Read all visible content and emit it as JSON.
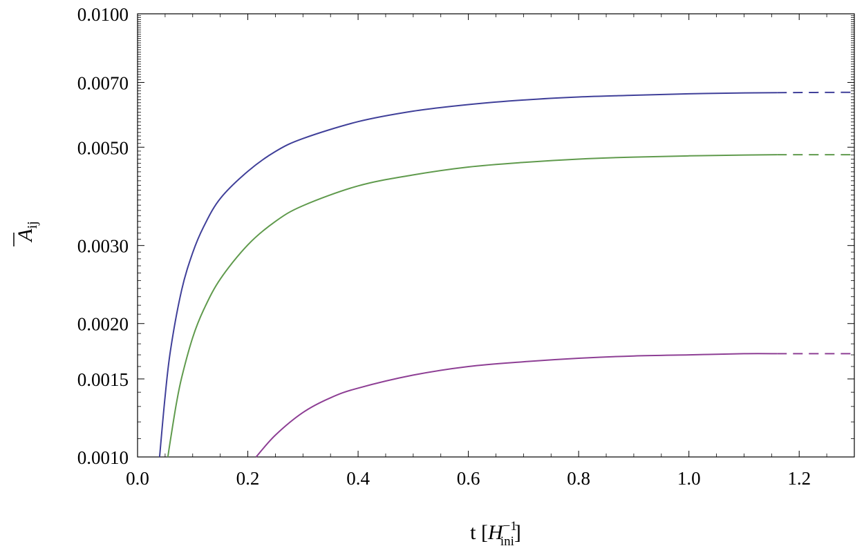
{
  "chart_data": {
    "type": "line",
    "title": "",
    "xlabel": "t [H_ini^-1]",
    "xlabel_parts": {
      "pre": "t [",
      "var": "H",
      "sub": "ini",
      "sup": "−1",
      "post": "]"
    },
    "ylabel": "Ā_ij",
    "ylabel_parts": {
      "var": "A",
      "sub": "ij"
    },
    "x_scale": "linear",
    "y_scale": "log",
    "xlim": [
      0.0,
      1.3
    ],
    "ylim": [
      0.001,
      0.01
    ],
    "x_ticks": [
      {
        "value": 0.0,
        "label": "0.0"
      },
      {
        "value": 0.2,
        "label": "0.2"
      },
      {
        "value": 0.4,
        "label": "0.4"
      },
      {
        "value": 0.6,
        "label": "0.6"
      },
      {
        "value": 0.8,
        "label": "0.8"
      },
      {
        "value": 1.0,
        "label": "1.0"
      },
      {
        "value": 1.2,
        "label": "1.2"
      }
    ],
    "y_ticks": [
      {
        "value": 0.001,
        "label": "0.0010"
      },
      {
        "value": 0.0015,
        "label": "0.0015"
      },
      {
        "value": 0.002,
        "label": "0.0020"
      },
      {
        "value": 0.003,
        "label": "0.0030"
      },
      {
        "value": 0.005,
        "label": "0.0050"
      },
      {
        "value": 0.007,
        "label": "0.0070"
      },
      {
        "value": 0.01,
        "label": "0.0100"
      }
    ],
    "grid": false,
    "legend": "none",
    "series": [
      {
        "color": "#3f3f99",
        "solid": {
          "x": [
            0.04,
            0.05,
            0.06,
            0.08,
            0.1,
            0.12,
            0.15,
            0.2,
            0.25,
            0.3,
            0.4,
            0.5,
            0.6,
            0.7,
            0.8,
            0.9,
            1.0,
            1.1,
            1.16
          ],
          "y": [
            0.001,
            0.00137,
            0.00175,
            0.00238,
            0.00289,
            0.00331,
            0.00383,
            0.00441,
            0.00489,
            0.00523,
            0.00571,
            0.00603,
            0.00624,
            0.00639,
            0.00649,
            0.00655,
            0.0066,
            0.00663,
            0.00664
          ]
        },
        "dashed": {
          "x": [
            1.16,
            1.3
          ],
          "y": [
            0.00664,
            0.00665
          ]
        }
      },
      {
        "color": "#5f9a4c",
        "solid": {
          "x": [
            0.055,
            0.06,
            0.07,
            0.08,
            0.1,
            0.12,
            0.15,
            0.2,
            0.25,
            0.3,
            0.4,
            0.5,
            0.6,
            0.7,
            0.8,
            0.9,
            1.0,
            1.1,
            1.16
          ],
          "y": [
            0.001,
            0.0011,
            0.00131,
            0.00151,
            0.00186,
            0.00215,
            0.00252,
            0.00301,
            0.0034,
            0.00369,
            0.00409,
            0.00433,
            0.00451,
            0.00462,
            0.0047,
            0.00475,
            0.00478,
            0.0048,
            0.00481
          ]
        },
        "dashed": {
          "x": [
            1.16,
            1.3
          ],
          "y": [
            0.00481,
            0.00481
          ]
        }
      },
      {
        "color": "#8d3e94",
        "solid": {
          "x": [
            0.215,
            0.25,
            0.3,
            0.35,
            0.4,
            0.5,
            0.6,
            0.7,
            0.8,
            0.9,
            1.0,
            1.1,
            1.16
          ],
          "y": [
            0.001,
            0.00112,
            0.00126,
            0.00136,
            0.00143,
            0.00153,
            0.0016,
            0.00164,
            0.00167,
            0.00169,
            0.0017,
            0.00171,
            0.00171
          ]
        },
        "dashed": {
          "x": [
            1.16,
            1.3
          ],
          "y": [
            0.00171,
            0.00171
          ]
        }
      }
    ]
  }
}
